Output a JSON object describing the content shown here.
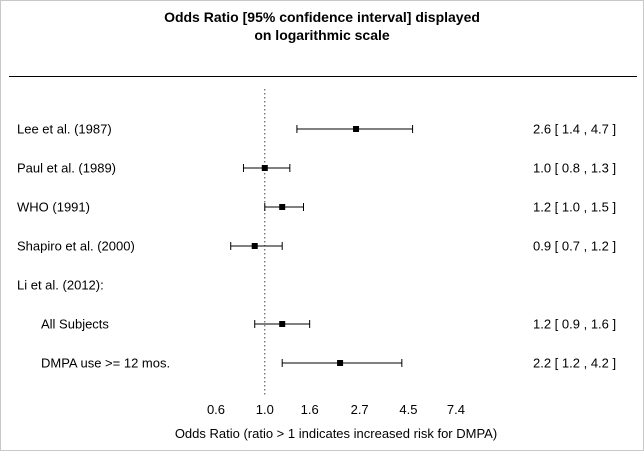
{
  "title": {
    "line1": "Odds Ratio [95% confidence interval] displayed",
    "line2": "on logarithmic scale"
  },
  "chart_data": {
    "type": "scatter",
    "subtype": "forest-plot",
    "scale": "log",
    "title": "Odds Ratio [95% confidence interval] displayed on logarithmic scale",
    "xlabel": "Odds Ratio (ratio > 1 indicates increased risk for DMPA)",
    "reference_line": 1.0,
    "marker_color": "#000000",
    "x_ticks": [
      0.6,
      1.0,
      1.6,
      2.7,
      4.5,
      7.4
    ],
    "x_tick_labels": [
      "0.6",
      "1.0",
      "1.6",
      "2.7",
      "4.5",
      "7.4"
    ],
    "studies": [
      {
        "label": "Lee et al. (1987)",
        "indent": false,
        "estimate": 2.6,
        "lower": 1.4,
        "upper": 4.7,
        "display": "2.6 [ 1.4 , 4.7 ]"
      },
      {
        "label": "Paul et al. (1989)",
        "indent": false,
        "estimate": 1.0,
        "lower": 0.8,
        "upper": 1.3,
        "display": "1.0 [ 0.8 , 1.3 ]"
      },
      {
        "label": "WHO (1991)",
        "indent": false,
        "estimate": 1.2,
        "lower": 1.0,
        "upper": 1.5,
        "display": "1.2 [ 1.0 , 1.5 ]"
      },
      {
        "label": "Shapiro et al. (2000)",
        "indent": false,
        "estimate": 0.9,
        "lower": 0.7,
        "upper": 1.2,
        "display": "0.9 [ 0.7 , 1.2 ]"
      },
      {
        "label": "Li et al. (2012):",
        "indent": false,
        "estimate": null,
        "lower": null,
        "upper": null,
        "display": ""
      },
      {
        "label": "All Subjects",
        "indent": true,
        "estimate": 1.2,
        "lower": 0.9,
        "upper": 1.6,
        "display": "1.2 [ 0.9 , 1.6 ]"
      },
      {
        "label": "DMPA use >= 12 mos.",
        "indent": true,
        "estimate": 2.2,
        "lower": 1.2,
        "upper": 4.2,
        "display": "2.2 [ 1.2 , 4.2 ]"
      }
    ]
  }
}
